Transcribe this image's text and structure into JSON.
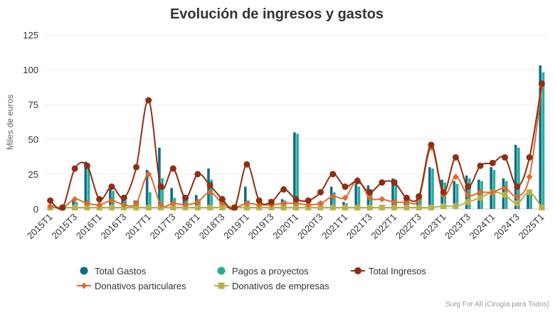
{
  "chart_data": {
    "type": "bar",
    "title": "Evolución de ingresos y gastos",
    "ylabel": "Miles de euros",
    "xlabel": "",
    "ylim": [
      0,
      125
    ],
    "yticks": [
      0,
      25,
      50,
      75,
      100,
      125
    ],
    "grid": true,
    "legend_position": "bottom",
    "credit": "Surg For All (Cirugía para Todos)",
    "categories": [
      "2015T1",
      "2015T2",
      "2015T3",
      "2015T4",
      "2016T1",
      "2016T2",
      "2016T3",
      "2016T4",
      "2017T1",
      "2017T2",
      "2017T3",
      "2017T4",
      "2018T1",
      "2018T2",
      "2018T3",
      "2018T4",
      "2019T1",
      "2019T2",
      "2019T3",
      "2019T4",
      "2020T1",
      "2020T2",
      "2020T3",
      "2020T4",
      "2021T1",
      "2021T2",
      "2021T3",
      "2021T4",
      "2022T1",
      "2022T2",
      "2022T3",
      "2022T4",
      "2023T1",
      "2023T2",
      "2023T3",
      "2023T4",
      "2024T1",
      "2024T2",
      "2024T3",
      "2024T4",
      "2025T1"
    ],
    "tick_labels": [
      "2015T1",
      "2015T3",
      "2016T1",
      "2016T3",
      "2017T1",
      "2017T3",
      "2018T1",
      "2018T3",
      "2019T1",
      "2019T3",
      "2020T1",
      "2020T3",
      "2021T1",
      "2021T3",
      "2022T1",
      "2022T3",
      "2023T1",
      "2023T3",
      "2024T1",
      "2024T3",
      "2025T1"
    ],
    "series": [
      {
        "name": "Total Gastos",
        "kind": "bar",
        "color": "#106b8b",
        "values": [
          1,
          1,
          6,
          34,
          2,
          15,
          7,
          6,
          28,
          44,
          15,
          10,
          10,
          29,
          5,
          1,
          16,
          2,
          7,
          7,
          55,
          2,
          5,
          16,
          5,
          18,
          17,
          3,
          22,
          8,
          9,
          30,
          21,
          20,
          24,
          21,
          30,
          22,
          46,
          13,
          103
        ]
      },
      {
        "name": "Pagos a proyectos",
        "kind": "bar",
        "color": "#21b196",
        "values": [
          1,
          1,
          5,
          30,
          2,
          13,
          6,
          6,
          12,
          22,
          8,
          8,
          7,
          21,
          4,
          1,
          6,
          2,
          6,
          6,
          54,
          2,
          4,
          12,
          4,
          16,
          14,
          3,
          21,
          7,
          8,
          29,
          19,
          18,
          22,
          20,
          28,
          20,
          44,
          12,
          98
        ]
      },
      {
        "name": "Total Ingresos",
        "kind": "line",
        "color": "#8e2f13",
        "marker": "circle",
        "values": [
          6,
          1,
          29,
          31,
          7,
          16,
          8,
          30,
          78,
          16,
          29,
          8,
          25,
          17,
          7,
          1,
          32,
          6,
          5,
          14,
          7,
          6,
          12,
          25,
          16,
          20,
          12,
          19,
          19,
          8,
          9,
          46,
          12,
          37,
          16,
          31,
          33,
          37,
          16,
          37,
          90
        ]
      },
      {
        "name": "Donativos particulares",
        "kind": "line",
        "color": "#df6a2f",
        "marker": "diamond",
        "values": [
          2,
          1,
          7,
          4,
          3,
          6,
          3,
          4,
          25,
          3,
          4,
          3,
          5,
          12,
          4,
          1,
          4,
          3,
          3,
          4,
          4,
          3,
          4,
          9,
          8,
          21,
          8,
          7,
          5,
          5,
          7,
          44,
          10,
          23,
          10,
          12,
          12,
          15,
          9,
          23,
          88
        ]
      },
      {
        "name": "Donativos de empresas",
        "kind": "line",
        "color": "#b9b04a",
        "marker": "square",
        "values": [
          1,
          1,
          1,
          1,
          1,
          1,
          1,
          1,
          1,
          1,
          1,
          1,
          1,
          1,
          1,
          1,
          1,
          1,
          1,
          1,
          1,
          1,
          1,
          1,
          1,
          1,
          1,
          1,
          1,
          1,
          1,
          1,
          2,
          2,
          5,
          8,
          12,
          10,
          4,
          12,
          1
        ]
      }
    ]
  }
}
